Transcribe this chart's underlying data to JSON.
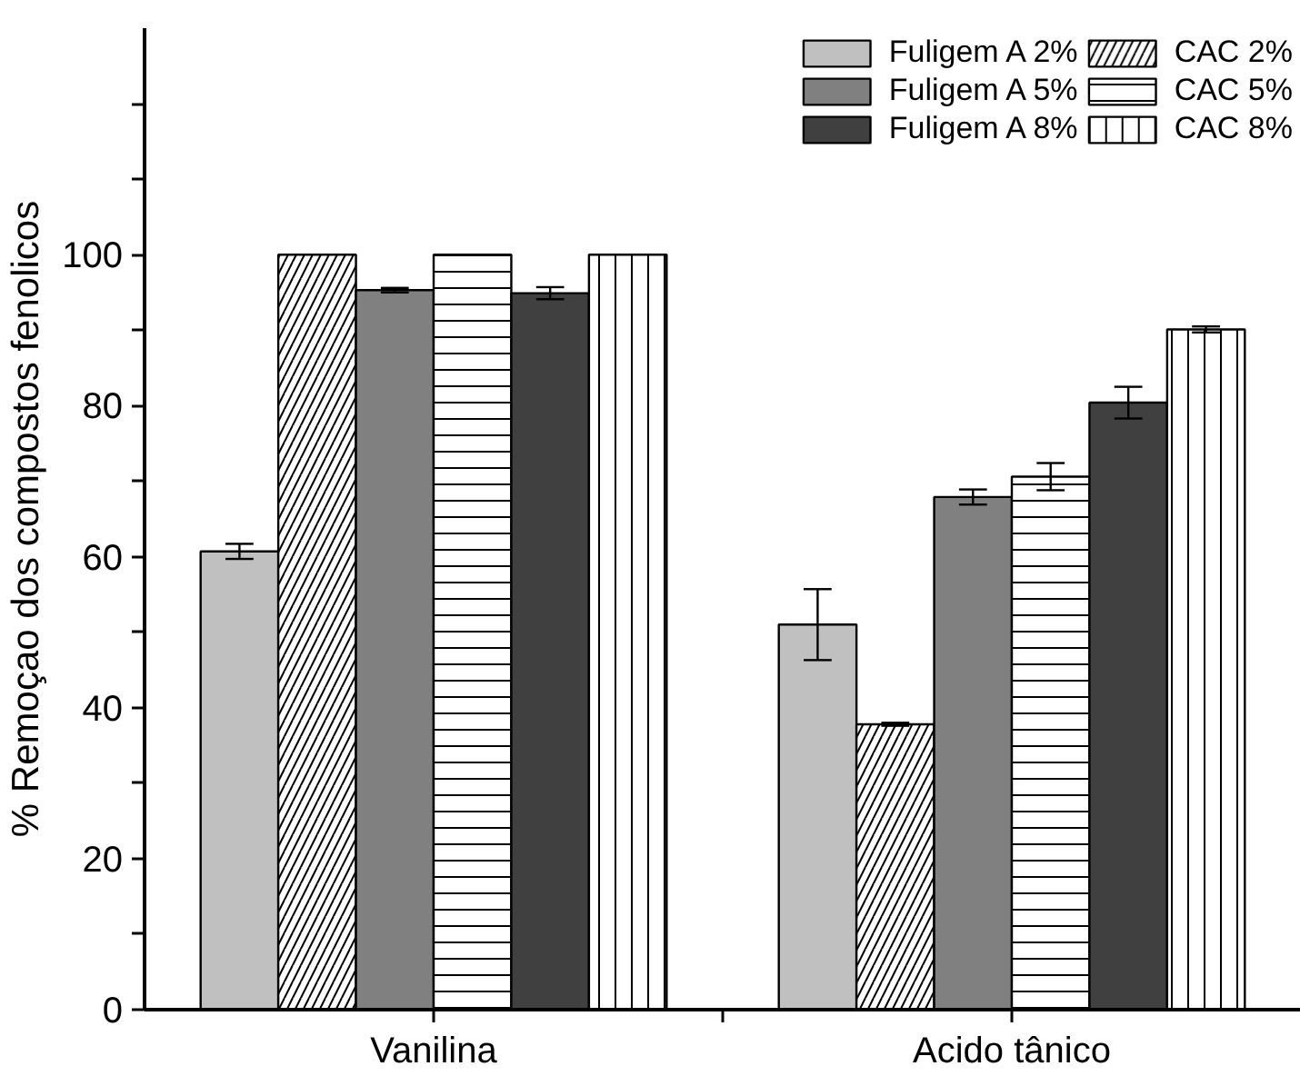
{
  "chart_data": {
    "type": "bar",
    "ylabel": "% Remoçao dos compostos fenolicos",
    "categories": [
      "Vanilina",
      "Acido tânico"
    ],
    "series": [
      {
        "name": "Fuligem A 2%",
        "color": "#c0c0c0",
        "values": [
          60.7,
          51.0
        ],
        "errors": [
          1.0,
          4.7
        ]
      },
      {
        "name": "CAC 2%",
        "color": "#ffffff",
        "values": [
          100,
          37.8
        ],
        "errors": [
          null,
          0.2
        ]
      },
      {
        "name": "Fuligem A 5%",
        "color": "#808080",
        "values": [
          95.3,
          67.9
        ],
        "errors": [
          0.3,
          1.0
        ]
      },
      {
        "name": "CAC 5%",
        "color": "#ffffff",
        "values": [
          100,
          70.6
        ],
        "errors": [
          null,
          1.8
        ]
      },
      {
        "name": "Fuligem A 8%",
        "color": "#404040",
        "values": [
          94.9,
          80.4
        ],
        "errors": [
          0.8,
          2.1
        ]
      },
      {
        "name": "CAC 8%",
        "color": "#ffffff",
        "values": [
          100,
          90.1
        ],
        "errors": [
          null,
          0.4
        ]
      }
    ],
    "ylim": [
      0,
      130
    ],
    "yticks": [
      0,
      {
        "value": 10,
        "label": null
      },
      20,
      {
        "value": 30,
        "label": null
      },
      40,
      {
        "value": 50,
        "label": null
      },
      60,
      {
        "value": 70,
        "label": null
      },
      80,
      {
        "value": 90,
        "label": null
      },
      100,
      {
        "value": 110,
        "label": null
      },
      {
        "value": 120,
        "label": null
      }
    ],
    "legend": "top right",
    "grid": false
  }
}
